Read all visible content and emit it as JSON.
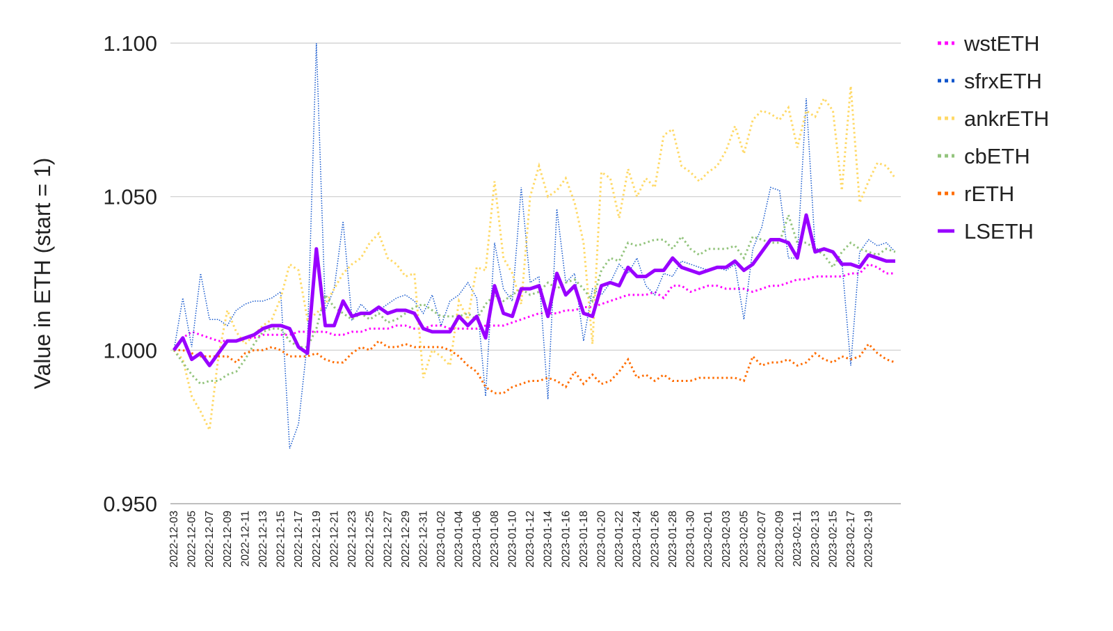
{
  "chart_data": {
    "type": "line",
    "y_label": "Value in ETH (start = 1)",
    "categories": [
      "2022-12-03",
      null,
      "2022-12-05",
      null,
      "2022-12-07",
      null,
      "2022-12-09",
      null,
      "2022-12-11",
      null,
      "2022-12-13",
      null,
      "2022-12-15",
      null,
      "2022-12-17",
      null,
      "2022-12-19",
      null,
      "2022-12-21",
      null,
      "2022-12-23",
      null,
      "2022-12-25",
      null,
      "2022-12-27",
      null,
      "2022-12-29",
      null,
      "2022-12-31",
      null,
      "2023-01-02",
      null,
      "2023-01-04",
      null,
      "2023-01-06",
      null,
      "2023-01-08",
      null,
      "2023-01-10",
      null,
      "2023-01-12",
      null,
      "2023-01-14",
      null,
      "2023-01-16",
      null,
      "2023-01-18",
      null,
      "2023-01-20",
      null,
      "2023-01-22",
      null,
      "2023-01-24",
      null,
      "2023-01-26",
      null,
      "2023-01-28",
      null,
      "2023-01-30",
      null,
      "2023-02-01",
      null,
      "2023-02-03",
      null,
      "2023-02-05",
      null,
      "2023-02-07",
      null,
      "2023-02-09",
      null,
      "2023-02-11",
      null,
      "2023-02-13",
      null,
      "2023-02-15",
      null,
      "2023-02-17",
      null,
      "2023-02-19",
      null,
      null,
      null
    ],
    "ylim": [
      0.95,
      1.1
    ],
    "yticks": [
      {
        "value": 0.95,
        "label": "0.950"
      },
      {
        "value": 1.0,
        "label": "1.000"
      },
      {
        "value": 1.05,
        "label": "1.050"
      },
      {
        "value": 1.1,
        "label": "1.100"
      }
    ],
    "grid": true,
    "legend": "right",
    "series": [
      {
        "name": "wstETH",
        "color": "#ff00ff",
        "style": "dotted",
        "values": [
          1.0,
          1.004,
          1.006,
          1.005,
          1.004,
          1.003,
          1.003,
          1.003,
          1.004,
          1.004,
          1.005,
          1.005,
          1.005,
          1.005,
          1.006,
          1.006,
          1.006,
          1.006,
          1.005,
          1.005,
          1.006,
          1.006,
          1.007,
          1.007,
          1.007,
          1.008,
          1.008,
          1.007,
          1.007,
          1.008,
          1.008,
          1.007,
          1.007,
          1.007,
          1.007,
          1.008,
          1.008,
          1.008,
          1.009,
          1.01,
          1.011,
          1.012,
          1.012,
          1.012,
          1.013,
          1.013,
          1.014,
          1.014,
          1.015,
          1.016,
          1.017,
          1.018,
          1.018,
          1.018,
          1.019,
          1.017,
          1.021,
          1.021,
          1.019,
          1.02,
          1.021,
          1.021,
          1.02,
          1.02,
          1.02,
          1.019,
          1.02,
          1.021,
          1.021,
          1.022,
          1.023,
          1.023,
          1.024,
          1.024,
          1.024,
          1.024,
          1.025,
          1.025,
          1.028,
          1.027,
          1.025,
          1.025
        ]
      },
      {
        "name": "sfrxETH",
        "color": "#1155cc",
        "style": "thin",
        "values": [
          1.0,
          1.017,
          1.001,
          1.025,
          1.01,
          1.01,
          1.008,
          1.013,
          1.015,
          1.016,
          1.016,
          1.017,
          1.019,
          0.968,
          0.976,
          1.003,
          1.1,
          1.013,
          1.02,
          1.042,
          1.01,
          1.015,
          1.012,
          1.013,
          1.015,
          1.017,
          1.018,
          1.016,
          1.012,
          1.018,
          1.008,
          1.016,
          1.018,
          1.022,
          1.017,
          0.985,
          1.035,
          1.02,
          1.016,
          1.053,
          1.022,
          1.024,
          0.984,
          1.046,
          1.022,
          1.025,
          1.003,
          1.02,
          1.018,
          1.022,
          1.028,
          1.025,
          1.03,
          1.021,
          1.018,
          1.025,
          1.024,
          1.029,
          1.028,
          1.027,
          1.026,
          1.027,
          1.026,
          1.028,
          1.01,
          1.033,
          1.04,
          1.053,
          1.052,
          1.03,
          1.03,
          1.082,
          1.033,
          1.033,
          1.032,
          1.029,
          0.995,
          1.032,
          1.036,
          1.034,
          1.035,
          1.032
        ]
      },
      {
        "name": "ankrETH",
        "color": "#ffd966",
        "style": "dotted",
        "values": [
          1.0,
          0.997,
          0.985,
          0.98,
          0.974,
          0.998,
          1.013,
          1.006,
          1.002,
          1.005,
          1.008,
          1.01,
          1.017,
          1.028,
          1.026,
          1.01,
          1.012,
          1.015,
          1.02,
          1.025,
          1.028,
          1.03,
          1.035,
          1.038,
          1.03,
          1.028,
          1.024,
          1.025,
          0.991,
          1.0,
          0.998,
          0.995,
          1.016,
          1.01,
          1.027,
          1.026,
          1.055,
          1.03,
          1.025,
          1.015,
          1.05,
          1.06,
          1.05,
          1.052,
          1.056,
          1.048,
          1.035,
          1.002,
          1.058,
          1.056,
          1.043,
          1.059,
          1.05,
          1.056,
          1.053,
          1.07,
          1.072,
          1.06,
          1.058,
          1.055,
          1.058,
          1.06,
          1.065,
          1.073,
          1.064,
          1.075,
          1.078,
          1.077,
          1.075,
          1.079,
          1.066,
          1.078,
          1.076,
          1.082,
          1.078,
          1.052,
          1.086,
          1.048,
          1.055,
          1.061,
          1.06,
          1.056
        ]
      },
      {
        "name": "cbETH",
        "color": "#93c47d",
        "style": "dotted",
        "values": [
          1.0,
          0.996,
          0.992,
          0.989,
          0.99,
          0.99,
          0.992,
          0.993,
          0.997,
          1.002,
          1.006,
          1.007,
          1.007,
          1.003,
          1.001,
          1.001,
          1.007,
          1.018,
          1.014,
          1.012,
          1.01,
          1.012,
          1.01,
          1.012,
          1.009,
          1.01,
          1.012,
          1.014,
          1.015,
          1.013,
          1.011,
          1.011,
          1.011,
          1.012,
          1.01,
          1.015,
          1.018,
          1.016,
          1.018,
          1.02,
          1.018,
          1.019,
          1.022,
          1.02,
          1.022,
          1.023,
          1.02,
          1.016,
          1.026,
          1.03,
          1.029,
          1.035,
          1.034,
          1.035,
          1.036,
          1.036,
          1.033,
          1.037,
          1.033,
          1.031,
          1.033,
          1.033,
          1.033,
          1.034,
          1.03,
          1.037,
          1.036,
          1.035,
          1.035,
          1.044,
          1.035,
          1.035,
          1.033,
          1.031,
          1.027,
          1.032,
          1.035,
          1.033,
          1.032,
          1.031,
          1.033,
          1.032
        ]
      },
      {
        "name": "rETH",
        "color": "#ff6d01",
        "style": "dotted",
        "values": [
          1.0,
          1.0,
          0.999,
          0.998,
          0.998,
          0.998,
          0.998,
          0.996,
          0.999,
          1.0,
          1.0,
          1.001,
          1.0,
          0.998,
          0.998,
          0.998,
          0.999,
          0.997,
          0.996,
          0.996,
          0.999,
          1.001,
          1.0,
          1.003,
          1.001,
          1.001,
          1.002,
          1.001,
          1.001,
          1.001,
          1.001,
          1.0,
          0.998,
          0.995,
          0.993,
          0.988,
          0.986,
          0.986,
          0.988,
          0.989,
          0.99,
          0.99,
          0.991,
          0.99,
          0.988,
          0.993,
          0.989,
          0.992,
          0.989,
          0.99,
          0.993,
          0.997,
          0.991,
          0.992,
          0.99,
          0.992,
          0.99,
          0.99,
          0.99,
          0.991,
          0.991,
          0.991,
          0.991,
          0.991,
          0.99,
          0.998,
          0.995,
          0.996,
          0.996,
          0.997,
          0.995,
          0.996,
          0.999,
          0.997,
          0.996,
          0.998,
          0.997,
          0.998,
          1.002,
          0.999,
          0.997,
          0.996
        ]
      },
      {
        "name": "LSETH",
        "color": "#9900ff",
        "style": "solid",
        "values": [
          1.0,
          1.004,
          0.997,
          0.999,
          0.995,
          0.999,
          1.003,
          1.003,
          1.004,
          1.005,
          1.007,
          1.008,
          1.008,
          1.007,
          1.001,
          0.999,
          1.033,
          1.008,
          1.008,
          1.016,
          1.011,
          1.012,
          1.012,
          1.014,
          1.012,
          1.013,
          1.013,
          1.012,
          1.007,
          1.006,
          1.006,
          1.006,
          1.011,
          1.008,
          1.011,
          1.004,
          1.021,
          1.012,
          1.011,
          1.02,
          1.02,
          1.021,
          1.011,
          1.025,
          1.018,
          1.021,
          1.012,
          1.011,
          1.021,
          1.022,
          1.021,
          1.027,
          1.024,
          1.024,
          1.026,
          1.026,
          1.03,
          1.027,
          1.026,
          1.025,
          1.026,
          1.027,
          1.027,
          1.029,
          1.026,
          1.028,
          1.032,
          1.036,
          1.036,
          1.035,
          1.03,
          1.044,
          1.032,
          1.033,
          1.032,
          1.028,
          1.028,
          1.027,
          1.031,
          1.03,
          1.029,
          1.029
        ]
      }
    ]
  }
}
